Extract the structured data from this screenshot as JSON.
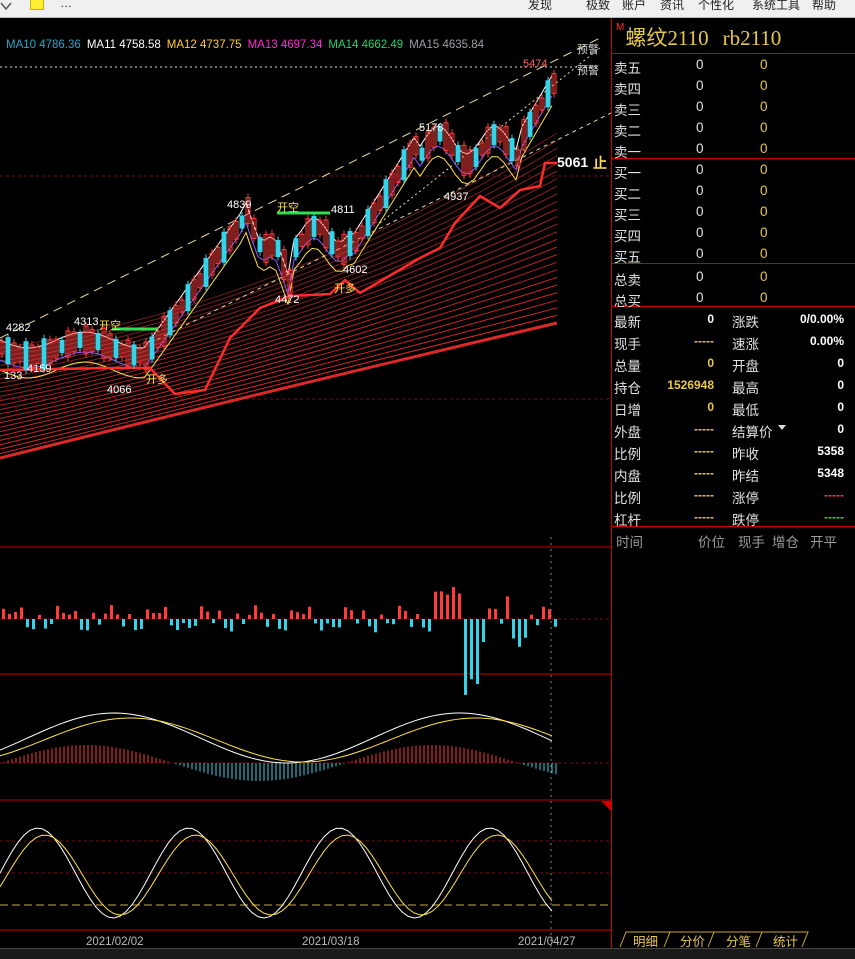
{
  "menu": {
    "items": [
      "发现",
      "极致",
      "账户",
      "资讯",
      "个性化",
      "系统工具",
      "帮助"
    ],
    "ellipsis": "…"
  },
  "ma_legend": [
    {
      "label": "MA10",
      "value": "4786.36",
      "color": "#2aa7c9"
    },
    {
      "label": "MA11",
      "value": "4758.58",
      "color": "#ffffff"
    },
    {
      "label": "MA12",
      "value": "4737.75",
      "color": "#ffd21f"
    },
    {
      "label": "MA13",
      "value": "4697.34",
      "color": "#ff2ad4"
    },
    {
      "label": "MA14",
      "value": "4662.49",
      "color": "#23d16b"
    },
    {
      "label": "MA15",
      "value": "4635.84",
      "color": "#9aa0a6"
    }
  ],
  "annotations": {
    "warn1": "预警",
    "warn2": "预警",
    "high_5474": "5474",
    "p5178": "5178",
    "p4937": "4937",
    "p4839": "4839",
    "p4811": "4811",
    "p4602": "4602",
    "p4472": "4472",
    "p4313": "4313",
    "p4282": "4282",
    "p4159": "4159",
    "p4066": "4066",
    "p133": "133",
    "open_short_1": "开空",
    "open_short_2": "开空",
    "open_long_1": "开多",
    "open_long_2": "开多",
    "stop_price": "5061",
    "stop_label": "止"
  },
  "dates": [
    "2021/02/02",
    "2021/03/18",
    "2021/04/27"
  ],
  "contract": {
    "mark": "M",
    "name": "螺纹2110",
    "code": "rb2110"
  },
  "order_book": [
    {
      "label": "卖五",
      "price": "0",
      "vol": "0"
    },
    {
      "label": "卖四",
      "price": "0",
      "vol": "0"
    },
    {
      "label": "卖三",
      "price": "0",
      "vol": "0"
    },
    {
      "label": "卖二",
      "price": "0",
      "vol": "0"
    },
    {
      "label": "卖一",
      "price": "0",
      "vol": "0"
    },
    {
      "label": "买一",
      "price": "0",
      "vol": "0"
    },
    {
      "label": "买二",
      "price": "0",
      "vol": "0"
    },
    {
      "label": "买三",
      "price": "0",
      "vol": "0"
    },
    {
      "label": "买四",
      "price": "0",
      "vol": "0"
    },
    {
      "label": "买五",
      "price": "0",
      "vol": "0"
    },
    {
      "label": "总卖",
      "price": "0",
      "vol": "0"
    },
    {
      "label": "总买",
      "price": "0",
      "vol": "0"
    }
  ],
  "quote": [
    {
      "l1": "最新",
      "v1": "0",
      "c1": "#ffffff",
      "l2": "涨跌",
      "v2": "0/0.00%",
      "c2": "#ffffff"
    },
    {
      "l1": "现手",
      "v1": "-----",
      "c1": "#e8c84a",
      "l2": "速涨",
      "v2": "0.00%",
      "c2": "#ffffff"
    },
    {
      "l1": "总量",
      "v1": "0",
      "c1": "#e8c84a",
      "l2": "开盘",
      "v2": "0",
      "c2": "#ffffff"
    },
    {
      "l1": "持仓",
      "v1": "1526948",
      "c1": "#e8c84a",
      "l2": "最高",
      "v2": "0",
      "c2": "#ffffff"
    },
    {
      "l1": "日增",
      "v1": "0",
      "c1": "#e8c84a",
      "l2": "最低",
      "v2": "0",
      "c2": "#ffffff"
    },
    {
      "l1": "外盘",
      "v1": "-----",
      "c1": "#e8c84a",
      "l2": "结算价",
      "v2": "0",
      "c2": "#ffffff"
    },
    {
      "l1": "比例",
      "v1": "-----",
      "c1": "#e8c84a",
      "l2": "昨收",
      "v2": "5358",
      "c2": "#ffffff"
    },
    {
      "l1": "内盘",
      "v1": "-----",
      "c1": "#e8c84a",
      "l2": "昨结",
      "v2": "5348",
      "c2": "#ffffff"
    },
    {
      "l1": "比例",
      "v1": "-----",
      "c1": "#e8c84a",
      "l2": "涨停",
      "v2": "-----",
      "c2": "#ff4040"
    },
    {
      "l1": "杠杆",
      "v1": "-----",
      "c1": "#e8c84a",
      "l2": "跌停",
      "v2": "-----",
      "c2": "#33dd33"
    }
  ],
  "tick_header": {
    "time": "时间",
    "price": "价位",
    "vol": "现手",
    "oi": "增仓",
    "type": "开平"
  },
  "tabs": [
    "明细",
    "分价",
    "分笔",
    "统计"
  ],
  "colors": {
    "up": "#ff3b3b",
    "down": "#36d3e8",
    "frame": "#cc0000",
    "text_yellow": "#e8c84a"
  }
}
